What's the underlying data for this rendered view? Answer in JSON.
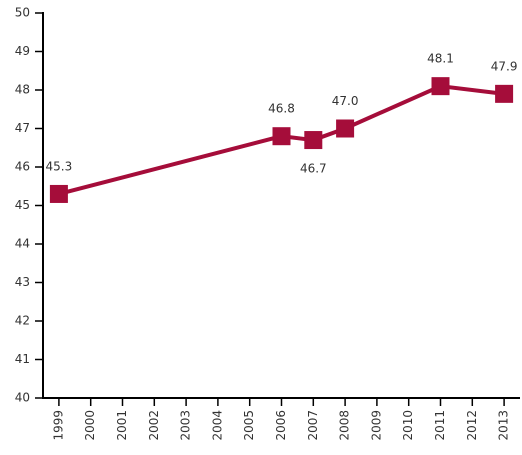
{
  "chart_data": {
    "type": "line",
    "x": [
      1999,
      2006,
      2007,
      2008,
      2011,
      2013
    ],
    "series": [
      {
        "color": "#a50d3a",
        "values": [
          45.3,
          46.8,
          46.7,
          47.0,
          48.1,
          47.9
        ],
        "value_labels": [
          "45.3",
          "46.8",
          "46.7",
          "47.0",
          "48.1",
          "47.9"
        ]
      }
    ],
    "xlim": [
      1998.5,
      2013.5
    ],
    "xticks": [
      1999,
      2000,
      2001,
      2002,
      2003,
      2004,
      2005,
      2006,
      2007,
      2008,
      2009,
      2010,
      2011,
      2012,
      2013
    ],
    "ylim": [
      40,
      50
    ],
    "yticks": [
      40,
      41,
      42,
      43,
      44,
      45,
      46,
      47,
      48,
      49,
      50
    ],
    "grid": false
  }
}
